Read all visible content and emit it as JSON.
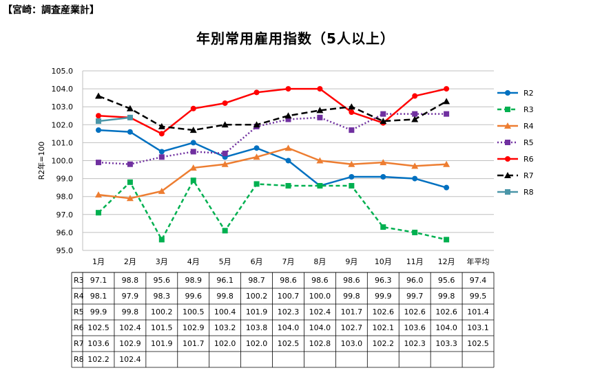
{
  "header_tag": "【宮崎：調査産業計】",
  "chart_data": {
    "type": "line",
    "title": "年別常用雇用指数（5人以上）",
    "ylabel": "R2年=100",
    "xlabel": "",
    "ylim": [
      95.0,
      105.0
    ],
    "ystep": 1.0,
    "grid": true,
    "legend_position": "right",
    "categories": [
      "1月",
      "2月",
      "3月",
      "4月",
      "5月",
      "6月",
      "7月",
      "8月",
      "9月",
      "10月",
      "11月",
      "12月"
    ],
    "table_extra_column": "年平均",
    "series": [
      {
        "name": "R2",
        "color": "#0070C0",
        "dash": "",
        "marker": "circle",
        "in_table": false,
        "values": [
          101.7,
          101.6,
          100.5,
          101.0,
          100.2,
          100.7,
          100.0,
          98.6,
          99.1,
          99.1,
          99.0,
          98.5
        ],
        "table_values": []
      },
      {
        "name": "R3",
        "color": "#00B050",
        "dash": "6,4",
        "marker": "square",
        "in_table": true,
        "values": [
          97.1,
          98.8,
          95.6,
          98.9,
          96.1,
          98.7,
          98.6,
          98.6,
          98.6,
          96.3,
          96.0,
          95.6
        ],
        "table_values": [
          "97.1",
          "98.8",
          "95.6",
          "98.9",
          "96.1",
          "98.7",
          "98.6",
          "98.6",
          "98.6",
          "96.3",
          "96.0",
          "95.6",
          "97.4"
        ]
      },
      {
        "name": "R4",
        "color": "#ED7D31",
        "dash": "",
        "marker": "triangle",
        "in_table": true,
        "values": [
          98.1,
          97.9,
          98.3,
          99.6,
          99.8,
          100.2,
          100.7,
          100.0,
          99.8,
          99.9,
          99.7,
          99.8
        ],
        "table_values": [
          "98.1",
          "97.9",
          "98.3",
          "99.6",
          "99.8",
          "100.2",
          "100.7",
          "100.0",
          "99.8",
          "99.9",
          "99.7",
          "99.8",
          "99.5"
        ]
      },
      {
        "name": "R5",
        "color": "#7030A0",
        "dash": "2,3",
        "marker": "square",
        "in_table": true,
        "values": [
          99.9,
          99.8,
          100.2,
          100.5,
          100.4,
          101.9,
          102.3,
          102.4,
          101.7,
          102.6,
          102.6,
          102.6
        ],
        "table_values": [
          "99.9",
          "99.8",
          "100.2",
          "100.5",
          "100.4",
          "101.9",
          "102.3",
          "102.4",
          "101.7",
          "102.6",
          "102.6",
          "102.6",
          "101.4"
        ]
      },
      {
        "name": "R6",
        "color": "#FF0000",
        "dash": "",
        "marker": "circle",
        "in_table": true,
        "values": [
          102.5,
          102.4,
          101.5,
          102.9,
          103.2,
          103.8,
          104.0,
          104.0,
          102.7,
          102.1,
          103.6,
          104.0
        ],
        "table_values": [
          "102.5",
          "102.4",
          "101.5",
          "102.9",
          "103.2",
          "103.8",
          "104.0",
          "104.0",
          "102.7",
          "102.1",
          "103.6",
          "104.0",
          "103.1"
        ]
      },
      {
        "name": "R7",
        "color": "#000000",
        "dash": "9,5",
        "marker": "triangle",
        "in_table": true,
        "values": [
          103.6,
          102.9,
          101.9,
          101.7,
          102.0,
          102.0,
          102.5,
          102.8,
          103.0,
          102.2,
          102.3,
          103.3
        ],
        "table_values": [
          "103.6",
          "102.9",
          "101.9",
          "101.7",
          "102.0",
          "102.0",
          "102.5",
          "102.8",
          "103.0",
          "102.2",
          "102.3",
          "103.3",
          "102.5"
        ]
      },
      {
        "name": "R8",
        "color": "#4A96A8",
        "dash": "",
        "marker": "square",
        "in_table": true,
        "values": [
          102.2,
          102.4,
          null,
          null,
          null,
          null,
          null,
          null,
          null,
          null,
          null,
          null
        ],
        "table_values": [
          "102.2",
          "102.4",
          "",
          "",
          "",
          "",
          "",
          "",
          "",
          "",
          "",
          "",
          " "
        ]
      }
    ]
  }
}
